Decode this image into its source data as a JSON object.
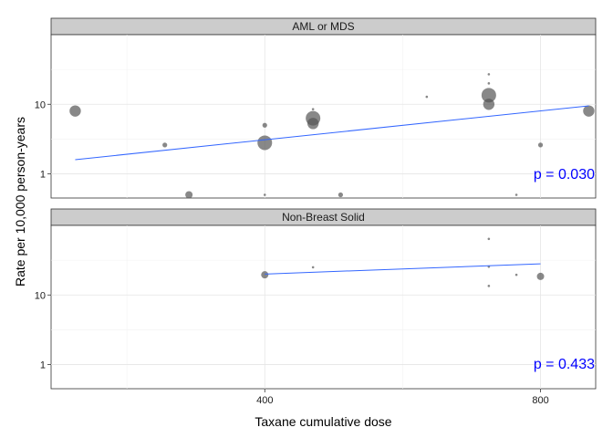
{
  "chart_data": {
    "type": "scatter",
    "xlabel": "Taxane cumulative dose",
    "ylabel": "Rate per 10,000 person-years",
    "x_ticks": [
      400,
      800
    ],
    "x_range": [
      90,
      880
    ],
    "y_scale": "log",
    "y_ticks": [
      1,
      10
    ],
    "grid": true,
    "colors": {
      "points": "#555555",
      "fit_line": "#3366ff",
      "annotation": "#0000ff",
      "strip_bg": "#cccccc"
    },
    "panels": [
      {
        "strip": "AML or MDS",
        "y_range": [
          0.45,
          100
        ],
        "annotation": "p = 0.030",
        "fit_line": {
          "x": [
            125,
            870
          ],
          "y": [
            1.6,
            9.5
          ]
        },
        "points": [
          {
            "x": 125,
            "y": 8.0,
            "size": 4
          },
          {
            "x": 255,
            "y": 2.6,
            "size": 2
          },
          {
            "x": 290,
            "y": 0.5,
            "size": 3
          },
          {
            "x": 400,
            "y": 5.0,
            "size": 2
          },
          {
            "x": 400,
            "y": 2.8,
            "size": 5
          },
          {
            "x": 400,
            "y": 0.5,
            "size": 1
          },
          {
            "x": 470,
            "y": 8.5,
            "size": 1
          },
          {
            "x": 470,
            "y": 6.3,
            "size": 5
          },
          {
            "x": 470,
            "y": 5.3,
            "size": 4
          },
          {
            "x": 510,
            "y": 0.5,
            "size": 2
          },
          {
            "x": 635,
            "y": 12.8,
            "size": 1
          },
          {
            "x": 725,
            "y": 27,
            "size": 1
          },
          {
            "x": 725,
            "y": 20,
            "size": 1
          },
          {
            "x": 725,
            "y": 13.5,
            "size": 5
          },
          {
            "x": 725,
            "y": 10,
            "size": 4
          },
          {
            "x": 765,
            "y": 0.5,
            "size": 1
          },
          {
            "x": 800,
            "y": 2.6,
            "size": 2
          },
          {
            "x": 870,
            "y": 8.0,
            "size": 4
          }
        ]
      },
      {
        "strip": "Non-Breast Solid",
        "y_range": [
          0.45,
          100
        ],
        "annotation": "p = 0.433",
        "fit_line": {
          "x": [
            400,
            800
          ],
          "y": [
            20,
            28
          ]
        },
        "points": [
          {
            "x": 400,
            "y": 19.5,
            "size": 3
          },
          {
            "x": 470,
            "y": 25,
            "size": 1
          },
          {
            "x": 725,
            "y": 64,
            "size": 1
          },
          {
            "x": 725,
            "y": 25.5,
            "size": 1
          },
          {
            "x": 725,
            "y": 13.5,
            "size": 1
          },
          {
            "x": 765,
            "y": 19.5,
            "size": 1
          },
          {
            "x": 800,
            "y": 18.5,
            "size": 3
          }
        ]
      }
    ]
  }
}
